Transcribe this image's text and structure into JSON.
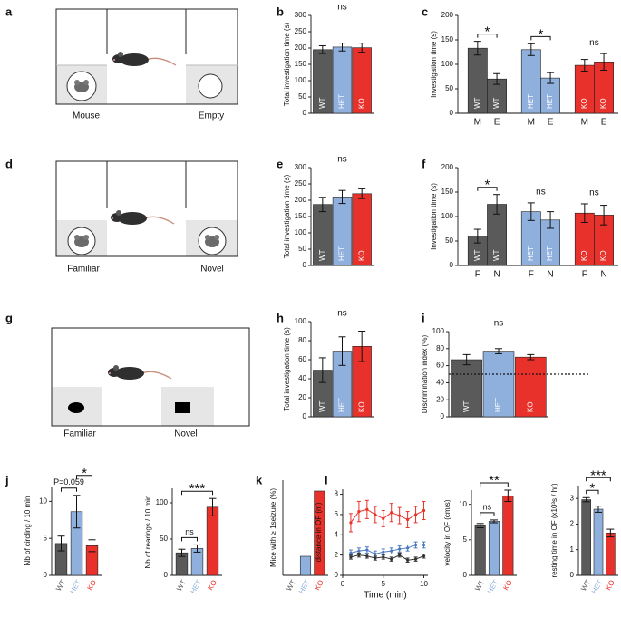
{
  "schematics": [
    {
      "panel": "a",
      "labels": [
        "Mouse",
        "Empty"
      ]
    },
    {
      "panel": "d",
      "labels": [
        "Familiar",
        "Novel"
      ]
    },
    {
      "panel": "g",
      "labels": [
        "Familiar",
        "Novel"
      ]
    }
  ],
  "chart_data": [
    {
      "type": "bar",
      "panel": "b",
      "annotation": "ns",
      "ylabel": "Total investigation time (s)",
      "categories": [
        "WT",
        "HET",
        "KO"
      ],
      "values": [
        195,
        203,
        201
      ],
      "errors": [
        12,
        12,
        14
      ],
      "colors": [
        "#5a5a5a",
        "#8fb0dc",
        "#e8312a"
      ],
      "label_position": "inside",
      "ylim": [
        0,
        300
      ],
      "yticks": [
        0,
        50,
        100,
        150,
        200,
        250,
        300
      ]
    },
    {
      "type": "grouped_bar",
      "panel": "c",
      "ylabel": "Investigation time (s)",
      "categories": [
        "M",
        "E"
      ],
      "groups": [
        {
          "name": "WT",
          "color": "#5a5a5a",
          "values": [
            133,
            70
          ],
          "errors": [
            14,
            11
          ],
          "annotation": "*"
        },
        {
          "name": "HET",
          "color": "#8fb0dc",
          "values": [
            130,
            72
          ],
          "errors": [
            12,
            11
          ],
          "annotation": "*"
        },
        {
          "name": "KO",
          "color": "#e8312a",
          "values": [
            98,
            105
          ],
          "errors": [
            12,
            17
          ],
          "annotation": "ns"
        }
      ],
      "ylim": [
        0,
        200
      ],
      "yticks": [
        0,
        50,
        100,
        150,
        200
      ]
    },
    {
      "type": "bar",
      "panel": "e",
      "annotation": "ns",
      "ylabel": "Total investigation time (s)",
      "categories": [
        "WT",
        "HET",
        "KO"
      ],
      "values": [
        187,
        210,
        220
      ],
      "errors": [
        22,
        20,
        15
      ],
      "colors": [
        "#5a5a5a",
        "#8fb0dc",
        "#e8312a"
      ],
      "label_position": "inside",
      "ylim": [
        0,
        300
      ],
      "yticks": [
        0,
        50,
        100,
        150,
        200,
        250,
        300
      ]
    },
    {
      "type": "grouped_bar",
      "panel": "f",
      "ylabel": "Investigation time (s)",
      "categories": [
        "F",
        "N"
      ],
      "groups": [
        {
          "name": "WT",
          "color": "#5a5a5a",
          "values": [
            60,
            125
          ],
          "errors": [
            14,
            20
          ],
          "annotation": "*"
        },
        {
          "name": "HET",
          "color": "#8fb0dc",
          "values": [
            110,
            93
          ],
          "errors": [
            18,
            17
          ],
          "annotation": "ns"
        },
        {
          "name": "KO",
          "color": "#e8312a",
          "values": [
            107,
            103
          ],
          "errors": [
            19,
            20
          ],
          "annotation": "ns"
        }
      ],
      "ylim": [
        0,
        200
      ],
      "yticks": [
        0,
        50,
        100,
        150,
        200
      ]
    },
    {
      "type": "bar",
      "panel": "h",
      "annotation": "ns",
      "ylabel": "Total investigation time (s)",
      "categories": [
        "WT",
        "HET",
        "KO"
      ],
      "values": [
        49,
        69,
        74
      ],
      "errors": [
        13,
        15,
        16
      ],
      "colors": [
        "#5a5a5a",
        "#8fb0dc",
        "#e8312a"
      ],
      "label_position": "inside",
      "ylim": [
        0,
        100
      ],
      "yticks": [
        0,
        20,
        40,
        60,
        80,
        100
      ]
    },
    {
      "type": "bar",
      "panel": "i",
      "annotation": "ns",
      "ylabel": "Discrimination index (%)",
      "categories": [
        "WT",
        "HET",
        "KO"
      ],
      "values": [
        67,
        77,
        70
      ],
      "errors": [
        6,
        3,
        3
      ],
      "colors": [
        "#5a5a5a",
        "#8fb0dc",
        "#e8312a"
      ],
      "label_position": "inside",
      "reference_line": 50,
      "ylim": [
        0,
        100
      ],
      "yticks": [
        0,
        20,
        40,
        60,
        80,
        100
      ]
    },
    {
      "type": "bar",
      "panel": "j",
      "ylabel": "Nb of circling / 10 min",
      "categories": [
        "WT",
        "HET",
        "KO"
      ],
      "values": [
        4.3,
        8.6,
        4.0
      ],
      "errors": [
        1.0,
        2.2,
        0.8
      ],
      "colors": [
        "#5a5a5a",
        "#8fb0dc",
        "#e8312a"
      ],
      "label_position": "below",
      "comparisons": [
        {
          "between": [
            "WT",
            "HET"
          ],
          "label": "P=0.059"
        },
        {
          "between": [
            "HET",
            "KO"
          ],
          "label": "*"
        }
      ],
      "ylim": [
        0,
        12
      ],
      "yticks": [
        0,
        5,
        10
      ]
    },
    {
      "type": "bar",
      "ylabel": "Nb of rearings / 10 min",
      "categories": [
        "WT",
        "HET",
        "KO"
      ],
      "values": [
        31,
        37,
        94
      ],
      "errors": [
        5,
        5,
        12
      ],
      "colors": [
        "#5a5a5a",
        "#8fb0dc",
        "#e8312a"
      ],
      "label_position": "below",
      "comparisons": [
        {
          "between": [
            "WT",
            "HET"
          ],
          "label": "ns"
        },
        {
          "between": [
            "WT",
            "KO"
          ],
          "label": "***"
        }
      ],
      "ylim": [
        0,
        120
      ],
      "yticks": [
        0,
        50,
        100
      ]
    },
    {
      "type": "bar",
      "panel": "k",
      "ylabel": "Mice with ≥ 1seizure (%)",
      "categories": [
        "WT",
        "HET",
        "KO"
      ],
      "values": [
        0,
        7,
        31
      ],
      "colors": [
        "#5a5a5a",
        "#8fb0dc",
        "#e8312a"
      ],
      "label_position": "below",
      "ylim": [
        0,
        35
      ]
    },
    {
      "type": "line",
      "panel": "l",
      "ylabel": "distance in OF (m)",
      "xlabel": "Time (min)",
      "x": [
        1,
        2,
        3,
        4,
        5,
        6,
        7,
        8,
        9,
        10
      ],
      "series": [
        {
          "color": "#e8312a",
          "values": [
            5.2,
            6.3,
            6.5,
            6.0,
            5.6,
            6.2,
            5.9,
            5.5,
            6.0,
            6.4
          ],
          "errors": [
            0.9,
            1.0,
            0.9,
            0.8,
            0.8,
            0.9,
            0.8,
            0.8,
            0.8,
            0.9
          ]
        },
        {
          "color": "#4a78c0",
          "values": [
            2.2,
            2.4,
            2.5,
            2.1,
            2.3,
            2.4,
            2.6,
            2.7,
            3.0,
            3.0
          ],
          "errors": [
            0.3,
            0.3,
            0.3,
            0.3,
            0.3,
            0.3,
            0.3,
            0.3,
            0.3,
            0.3
          ]
        },
        {
          "color": "#333333",
          "values": [
            1.8,
            2.0,
            1.9,
            1.7,
            1.8,
            1.6,
            2.0,
            1.5,
            1.6,
            1.9
          ],
          "errors": [
            0.2,
            0.2,
            0.2,
            0.2,
            0.2,
            0.2,
            0.2,
            0.2,
            0.2,
            0.2
          ]
        }
      ],
      "xlim": [
        0,
        10.5
      ],
      "xticks": [
        0,
        5,
        10
      ],
      "ylim": [
        0,
        8.5
      ],
      "yticks": [
        0,
        2,
        4,
        6,
        8
      ]
    },
    {
      "type": "bar",
      "ylabel": "velocity in OF (cm/s)",
      "categories": [
        "WT",
        "HET",
        "KO"
      ],
      "values": [
        7.0,
        7.6,
        11.2
      ],
      "errors": [
        0.3,
        0.2,
        0.8
      ],
      "colors": [
        "#5a5a5a",
        "#8fb0dc",
        "#e8312a"
      ],
      "label_position": "below",
      "comparisons": [
        {
          "between": [
            "WT",
            "HET"
          ],
          "label": "ns"
        },
        {
          "between": [
            "WT",
            "KO"
          ],
          "label": "**"
        }
      ],
      "ylim": [
        0,
        12
      ],
      "yticks": [
        0,
        5,
        10
      ]
    },
    {
      "type": "bar",
      "ylabel": "resting time in OF (x10³s / hr)",
      "categories": [
        "WT",
        "HET",
        "KO"
      ],
      "values": [
        2.95,
        2.58,
        1.65
      ],
      "errors": [
        0.08,
        0.12,
        0.15
      ],
      "colors": [
        "#5a5a5a",
        "#8fb0dc",
        "#e8312a"
      ],
      "label_position": "below",
      "comparisons": [
        {
          "between": [
            "WT",
            "HET"
          ],
          "label": "*"
        },
        {
          "between": [
            "WT",
            "KO"
          ],
          "label": "***"
        }
      ],
      "ylim": [
        0,
        3.5
      ],
      "yticks": [
        0,
        1,
        2,
        3
      ]
    }
  ]
}
